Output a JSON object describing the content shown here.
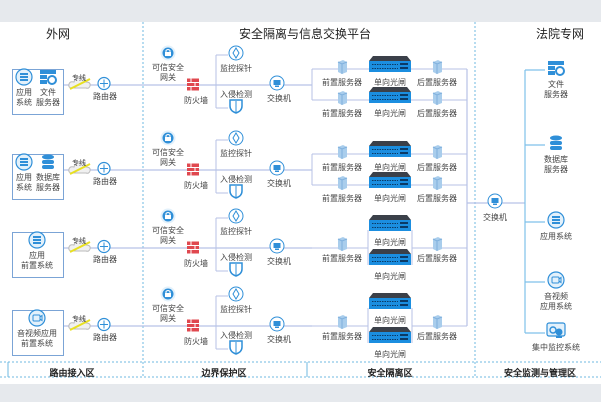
{
  "sections": {
    "outer_net": "外网",
    "platform": "安全隔离与信息交换平台",
    "court_net": "法院专网"
  },
  "zones": [
    "路由接入区",
    "边界保护区",
    "安全隔离区",
    "安全监测与管理区"
  ],
  "rows": [
    {
      "sources": [
        {
          "icon": "app-icon",
          "lines": [
            "应用",
            "系统"
          ]
        },
        {
          "icon": "file-server-icon",
          "lines": [
            "文件",
            "服务器"
          ]
        }
      ],
      "style": "pair"
    },
    {
      "sources": [
        {
          "icon": "app-icon",
          "lines": [
            "应用",
            "系统"
          ]
        },
        {
          "icon": "database-icon",
          "lines": [
            "数据库",
            "服务器"
          ]
        }
      ],
      "style": "pair"
    },
    {
      "sources": [
        {
          "icon": "app-icon",
          "lines": [
            "应用",
            "前置系统"
          ]
        }
      ],
      "style": "single"
    },
    {
      "sources": [
        {
          "icon": "video-icon",
          "lines": [
            "音视频应用",
            "前置系统"
          ]
        }
      ],
      "style": "single"
    }
  ],
  "labels": {
    "leased_line": "专线",
    "router": "路由器",
    "gateway": [
      "可信安全",
      "网关"
    ],
    "firewall": "防火墙",
    "monitor_probe": "监控探针",
    "intrusion_detection": "入侵检测",
    "switch": "交换机",
    "front_server": "前置服务器",
    "optical_gate": "单向光闸",
    "back_server": "后置服务器"
  },
  "court_items": [
    {
      "icon": "file-server-icon",
      "lines": [
        "文件",
        "服务器"
      ]
    },
    {
      "icon": "database-icon",
      "lines": [
        "数据库",
        "服务器"
      ]
    },
    {
      "icon": "app-icon",
      "lines": [
        "应用系统"
      ]
    },
    {
      "icon": "video-icon",
      "lines": [
        "音视频",
        "应用系统"
      ]
    },
    {
      "icon": "monitor-system-icon",
      "lines": [
        "集中监控系统"
      ]
    }
  ],
  "colors": {
    "accent": "#2f8fd8",
    "line": "#b7c2e6",
    "firewall": "#e0484f",
    "divider": "#6fb8e0"
  }
}
